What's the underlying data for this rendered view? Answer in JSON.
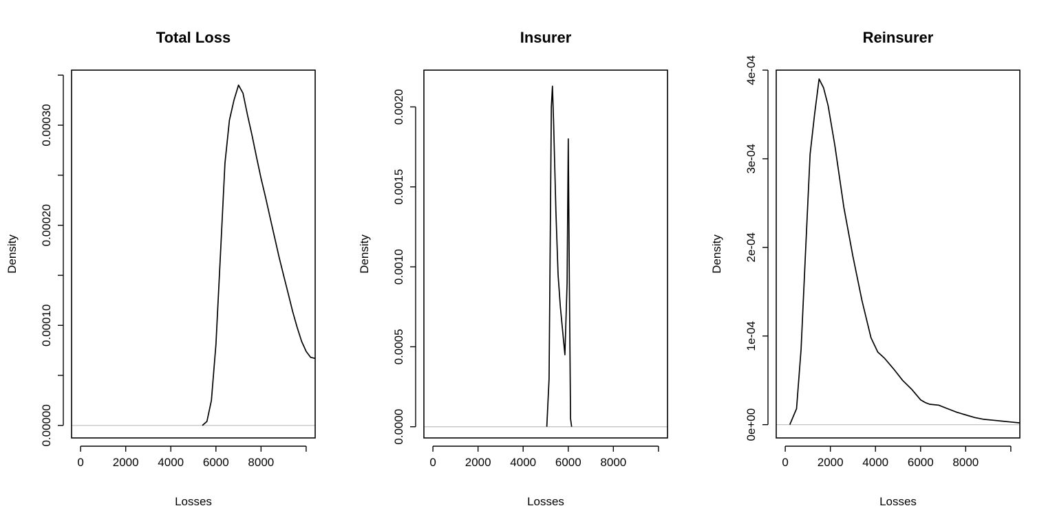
{
  "chart_data": [
    {
      "type": "line",
      "title": "Total Loss",
      "xlabel": "Losses",
      "ylabel": "Density",
      "xlim": [
        -400,
        10400
      ],
      "ylim": [
        -1.25e-05,
        0.000355
      ],
      "xticks": [
        0,
        2000,
        4000,
        6000,
        8000
      ],
      "xtick_labels": [
        "0",
        "2000",
        "4000",
        "6000",
        "8000"
      ],
      "yticks": [
        0,
        5e-05,
        0.0001,
        0.00015,
        0.0002,
        0.00025,
        0.0003,
        0.00035
      ],
      "ytick_labels": [
        "0.00000",
        "",
        "0.00010",
        "",
        "0.00020",
        "",
        "0.00030",
        ""
      ],
      "zero_line": true,
      "series": [
        {
          "x": [
            5400,
            5600,
            5800,
            6000,
            6200,
            6400,
            6600,
            6800,
            7000,
            7200,
            7400,
            7600,
            7800,
            8000,
            8200,
            8400,
            8600,
            8800,
            9000,
            9200,
            9400,
            9600,
            9800,
            10000,
            10200,
            10400
          ],
          "y": [
            0.0,
            4e-06,
            2.5e-05,
            8.1e-05,
            0.00017,
            0.000262,
            0.000305,
            0.000325,
            0.00034,
            0.000332,
            0.00031,
            0.00029,
            0.000268,
            0.000247,
            0.000228,
            0.000208,
            0.000188,
            0.000168,
            0.00015,
            0.000132,
            0.000114,
            9.8e-05,
            8.4e-05,
            7.4e-05,
            6.8e-05,
            6.7e-05
          ]
        }
      ]
    },
    {
      "type": "line",
      "title": "Insurer",
      "xlabel": "Losses",
      "ylabel": "Density",
      "xlim": [
        -400,
        10400
      ],
      "ylim": [
        -7e-05,
        0.00223
      ],
      "xticks": [
        0,
        2000,
        4000,
        6000,
        8000
      ],
      "xtick_labels": [
        "0",
        "2000",
        "4000",
        "6000",
        "8000"
      ],
      "yticks": [
        0,
        0.0005,
        0.001,
        0.0015,
        0.002
      ],
      "ytick_labels": [
        "0.0000",
        "0.0005",
        "0.0010",
        "0.0015",
        "0.0020"
      ],
      "zero_line": true,
      "series": [
        {
          "x": [
            5050,
            5150,
            5250,
            5300,
            5350,
            5450,
            5550,
            5650,
            5750,
            5850,
            5950,
            6000,
            6050,
            6100,
            6150
          ],
          "y": [
            0.0,
            0.0003,
            0.002,
            0.00213,
            0.0019,
            0.00135,
            0.00095,
            0.00075,
            0.0006,
            0.00045,
            0.0009,
            0.0018,
            0.0009,
            5e-05,
            0.0
          ]
        }
      ]
    },
    {
      "type": "line",
      "title": "Reinsurer",
      "xlabel": "Losses",
      "ylabel": "Density",
      "xlim": [
        -400,
        10400
      ],
      "ylim": [
        -1.5e-05,
        0.0004
      ],
      "xticks": [
        0,
        2000,
        4000,
        6000,
        8000
      ],
      "xtick_labels": [
        "0",
        "2000",
        "4000",
        "6000",
        "8000"
      ],
      "yticks": [
        0,
        0.0001,
        0.0002,
        0.0003,
        0.0004
      ],
      "ytick_labels": [
        "0e+00",
        "1e-04",
        "2e-04",
        "3e-04",
        "4e-04"
      ],
      "zero_line": true,
      "series": [
        {
          "x": [
            200,
            500,
            700,
            900,
            1100,
            1300,
            1500,
            1700,
            1900,
            2200,
            2600,
            3000,
            3400,
            3800,
            4100,
            4400,
            4800,
            5200,
            5600,
            6000,
            6200,
            6400,
            6800,
            7200,
            7600,
            8000,
            8400,
            8800,
            9200,
            9600,
            10000,
            10400
          ],
          "y": [
            0.0,
            1.8e-05,
            8.5e-05,
            0.000195,
            0.000305,
            0.00035,
            0.00039,
            0.00038,
            0.00036,
            0.000315,
            0.000245,
            0.00019,
            0.00014,
            9.8e-05,
            8.2e-05,
            7.5e-05,
            6.3e-05,
            5e-05,
            4e-05,
            2.8e-05,
            2.5e-05,
            2.3e-05,
            2.2e-05,
            1.8e-05,
            1.4e-05,
            1.1e-05,
            8e-06,
            6e-06,
            5e-06,
            4e-06,
            3e-06,
            2e-06
          ]
        }
      ]
    }
  ]
}
